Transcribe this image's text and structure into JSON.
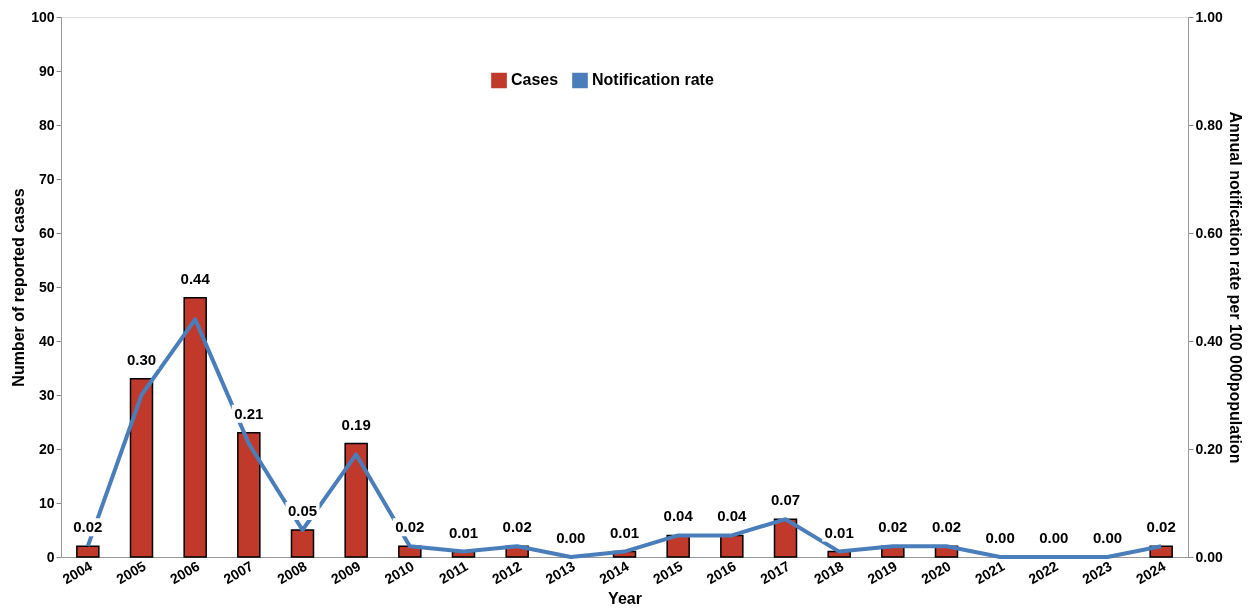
{
  "chart_data": {
    "type": "bar",
    "categories": [
      "2004",
      "2005",
      "2006",
      "2007",
      "2008",
      "2009",
      "2010",
      "2011",
      "2012",
      "2013",
      "2014",
      "2015",
      "2016",
      "2017",
      "2018",
      "2019",
      "2020",
      "2021",
      "2022",
      "2023",
      "2024"
    ],
    "series": [
      {
        "name": "Cases",
        "color": "#c0392b",
        "values": [
          2,
          33,
          48,
          23,
          5,
          21,
          2,
          1,
          2,
          0,
          1,
          4,
          4,
          7,
          1,
          2,
          2,
          0,
          0,
          0,
          2
        ]
      },
      {
        "name": "Notification rate",
        "type": "line",
        "axis": "y2",
        "color": "#4a7ebb",
        "values": [
          0.02,
          0.3,
          0.44,
          0.21,
          0.05,
          0.19,
          0.02,
          0.01,
          0.02,
          0.0,
          0.01,
          0.04,
          0.04,
          0.07,
          0.01,
          0.02,
          0.02,
          0.0,
          0.0,
          0.0,
          0.02
        ],
        "value_labels": [
          "0.02",
          "0.30",
          "0.44",
          "0.21",
          "0.05",
          "0.19",
          "0.02",
          "0.01",
          "0.02",
          "0.00",
          "0.01",
          "0.04",
          "0.04",
          "0.07",
          "0.01",
          "0.02",
          "0.02",
          "0.00",
          "0.00",
          "0.00",
          "0.02"
        ]
      }
    ],
    "xlabel": "Year",
    "ylabel": "Number of reported cases",
    "y2label": "Annual notification rate per 100 000population",
    "ylim": [
      0,
      100
    ],
    "yticks": [
      0,
      10,
      20,
      30,
      40,
      50,
      60,
      70,
      80,
      90,
      100
    ],
    "y2lim": [
      0,
      1
    ],
    "y2ticks": [
      {
        "value": 0,
        "label": "0.00"
      },
      {
        "value": 0.2,
        "label": "0.20"
      },
      {
        "value": 0.4,
        "label": "0.40"
      },
      {
        "value": 0.6,
        "label": "0.60"
      },
      {
        "value": 0.8,
        "label": "0.80"
      },
      {
        "value": 1,
        "label": "1.00"
      }
    ],
    "legend": "top",
    "grid": false
  }
}
